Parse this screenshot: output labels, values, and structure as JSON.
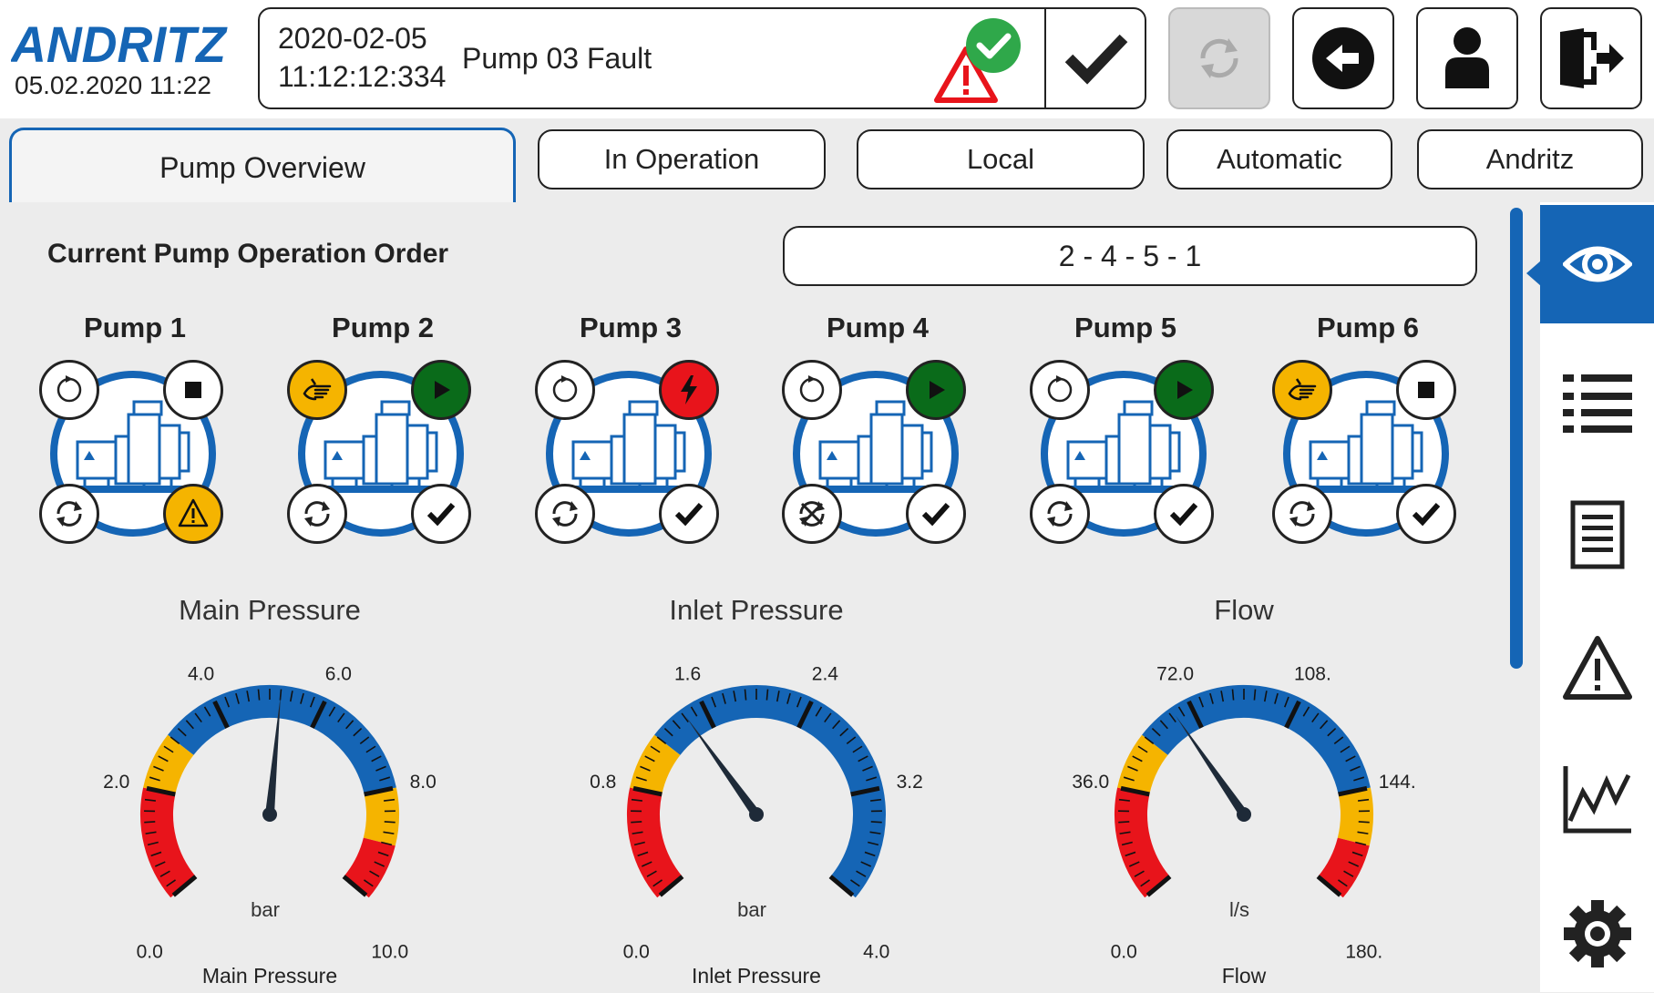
{
  "header": {
    "logo_text": "ANDRITZ",
    "clock": "05.02.2020 11:22",
    "alarm": {
      "date": "2020-02-05",
      "time": "11:12:12:334",
      "message": "Pump 03 Fault"
    },
    "buttons": [
      "acknowledge-icon",
      "refresh-icon",
      "back-icon",
      "user-icon",
      "logout-icon"
    ]
  },
  "tabs": [
    {
      "label": "Pump Overview",
      "active": true
    },
    {
      "label": "In Operation"
    },
    {
      "label": "Local"
    },
    {
      "label": "Automatic"
    },
    {
      "label": "Andritz"
    }
  ],
  "order": {
    "label": "Current Pump Operation Order",
    "value": "2 - 4 - 5 - 1"
  },
  "pumps": [
    {
      "name": "Pump 1",
      "tl": "ready-icon",
      "tr": "stop-icon",
      "bl": "auto-icon",
      "br": "warning-icon"
    },
    {
      "name": "Pump 2",
      "tl": "manual-icon",
      "tr": "running-icon",
      "bl": "auto-icon",
      "br": "ok-icon"
    },
    {
      "name": "Pump 3",
      "tl": "ready-icon",
      "tr": "fault-icon",
      "bl": "auto-icon",
      "br": "ok-icon"
    },
    {
      "name": "Pump 4",
      "tl": "ready-icon",
      "tr": "running-icon",
      "bl": "auto-disabled-icon",
      "br": "ok-icon"
    },
    {
      "name": "Pump 5",
      "tl": "ready-icon",
      "tr": "running-icon",
      "bl": "auto-icon",
      "br": "ok-icon"
    },
    {
      "name": "Pump 6",
      "tl": "manual-icon",
      "tr": "stop-icon",
      "bl": "auto-icon",
      "br": "ok-icon"
    }
  ],
  "gauges": [
    {
      "title": "Main Pressure",
      "unit": "bar",
      "bottom": "Main Pressure",
      "min": 0,
      "max": 10,
      "value": 5.2,
      "labels": [
        "0.0",
        "2.0",
        "4.0",
        "6.0",
        "8.0",
        "10.0"
      ],
      "bands": [
        {
          "from": 0,
          "to": 2,
          "color": "#e8141b"
        },
        {
          "from": 2,
          "to": 3,
          "color": "#f5b400"
        },
        {
          "from": 3,
          "to": 8,
          "color": "#1565b5"
        },
        {
          "from": 8,
          "to": 9,
          "color": "#f5b400"
        },
        {
          "from": 9,
          "to": 10,
          "color": "#e8141b"
        }
      ]
    },
    {
      "title": "Inlet Pressure",
      "unit": "bar",
      "bottom": "Inlet Pressure",
      "min": 0,
      "max": 4,
      "value": 1.45,
      "labels": [
        "0.0",
        "0.8",
        "1.6",
        "2.4",
        "3.2",
        "4.0"
      ],
      "bands": [
        {
          "from": 0,
          "to": 0.8,
          "color": "#e8141b"
        },
        {
          "from": 0.8,
          "to": 1.2,
          "color": "#f5b400"
        },
        {
          "from": 1.2,
          "to": 4,
          "color": "#1565b5"
        }
      ]
    },
    {
      "title": "Flow",
      "unit": "l/s",
      "bottom": "Flow",
      "min": 0,
      "max": 180,
      "value": 66,
      "labels": [
        "0.0",
        "36.0",
        "72.0",
        "108.",
        "144.",
        "180."
      ],
      "bands": [
        {
          "from": 0,
          "to": 36,
          "color": "#e8141b"
        },
        {
          "from": 36,
          "to": 54,
          "color": "#f5b400"
        },
        {
          "from": 54,
          "to": 144,
          "color": "#1565b5"
        },
        {
          "from": 144,
          "to": 162,
          "color": "#f5b400"
        },
        {
          "from": 162,
          "to": 180,
          "color": "#e8141b"
        }
      ]
    }
  ],
  "sidebar": [
    "overview-eye-icon",
    "list-icon",
    "report-icon",
    "alarm-icon",
    "trend-icon",
    "settings-gear-icon"
  ],
  "colors": {
    "accent": "#1565b5",
    "warning": "#f5b400",
    "alarm": "#e8141b",
    "running": "#0a6b1a"
  }
}
